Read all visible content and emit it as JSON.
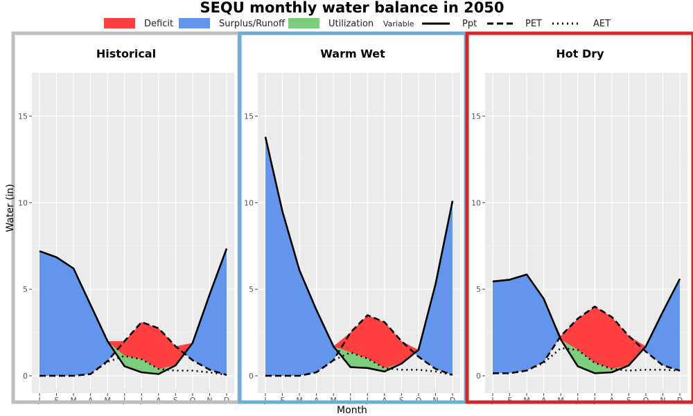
{
  "chart_data": {
    "type": "area",
    "title": "SEQU monthly water balance in 2050",
    "xlabel": "Month",
    "ylabel": "Water (in)",
    "ylim": [
      -1,
      17.5
    ],
    "yticks": [
      0,
      5,
      10,
      15
    ],
    "ytick_labels": [
      "0",
      "5",
      "10",
      "15"
    ],
    "categories": [
      "J",
      "F",
      "M",
      "A",
      "M",
      "J",
      "J",
      "A",
      "S",
      "O",
      "N",
      "D"
    ],
    "legend": {
      "position": "top",
      "fill_items": [
        {
          "label": "Deficit",
          "color": "#ff4040"
        },
        {
          "label": "Surplus/Runoff",
          "color": "#6495ed"
        },
        {
          "label": "Utilization",
          "color": "#7ccd7c"
        }
      ],
      "line_title": "Variable",
      "line_items": [
        {
          "label": "Ppt",
          "style": "solid"
        },
        {
          "label": "PET",
          "style": "dashed"
        },
        {
          "label": "AET",
          "style": "dotted"
        }
      ]
    },
    "panels": [
      {
        "name": "Historical",
        "border_color": "#bebebe",
        "series": [
          {
            "name": "Ppt",
            "values": [
              7.2,
              6.85,
              6.2,
              4.1,
              2.0,
              0.55,
              0.2,
              0.1,
              0.6,
              1.9,
              4.7,
              7.35
            ]
          },
          {
            "name": "PET",
            "values": [
              0.0,
              0.0,
              0.0,
              0.1,
              0.85,
              2.0,
              3.1,
              2.75,
              1.7,
              0.9,
              0.35,
              0.05
            ]
          },
          {
            "name": "AET",
            "values": [
              0.0,
              0.0,
              0.0,
              0.1,
              0.8,
              1.15,
              0.95,
              0.4,
              0.3,
              0.3,
              0.2,
              0.05
            ]
          }
        ]
      },
      {
        "name": "Warm Wet",
        "border_color": "#6baed6",
        "series": [
          {
            "name": "Ppt",
            "values": [
              13.8,
              9.5,
              6.1,
              3.8,
              1.7,
              0.5,
              0.45,
              0.25,
              0.7,
              1.5,
              5.3,
              10.1
            ]
          },
          {
            "name": "PET",
            "values": [
              0.0,
              0.0,
              0.0,
              0.2,
              0.9,
              2.5,
              3.5,
              3.1,
              2.0,
              1.1,
              0.4,
              0.05
            ]
          },
          {
            "name": "AET",
            "values": [
              0.0,
              0.0,
              0.0,
              0.2,
              0.9,
              1.35,
              1.0,
              0.45,
              0.35,
              0.35,
              0.25,
              0.05
            ]
          }
        ]
      },
      {
        "name": "Hot Dry",
        "border_color": "#d62728",
        "series": [
          {
            "name": "Ppt",
            "values": [
              5.45,
              5.55,
              5.85,
              4.45,
              2.1,
              0.55,
              0.15,
              0.2,
              0.6,
              1.7,
              3.7,
              5.6
            ]
          },
          {
            "name": "PET",
            "values": [
              0.15,
              0.15,
              0.3,
              0.8,
              2.3,
              3.3,
              4.0,
              3.4,
              2.3,
              1.4,
              0.6,
              0.3
            ]
          },
          {
            "name": "AET",
            "values": [
              0.15,
              0.15,
              0.3,
              0.75,
              1.6,
              1.5,
              0.75,
              0.4,
              0.3,
              0.35,
              0.35,
              0.3
            ]
          }
        ]
      }
    ]
  }
}
